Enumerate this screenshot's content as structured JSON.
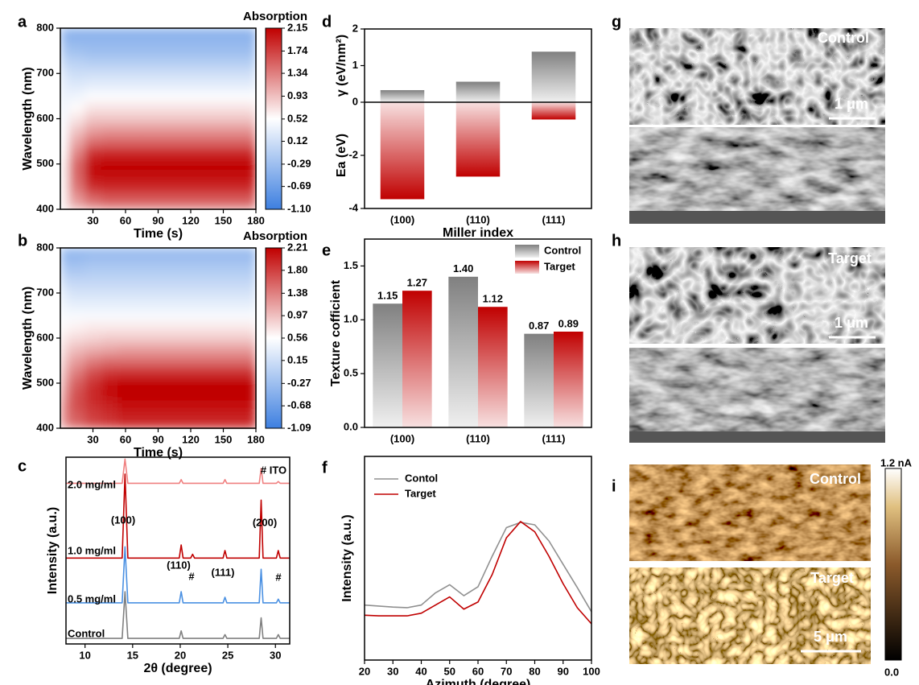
{
  "chart_data": [
    {
      "panel_label": "a",
      "type": "heatmap",
      "xlabel": "Time (s)",
      "ylabel": "Wavelength (nm)",
      "colorbar_label": "Absorption",
      "x": [
        0,
        15,
        30,
        45,
        60,
        90,
        135,
        180
      ],
      "y": [
        400,
        425,
        450,
        475,
        500,
        525,
        550,
        575,
        600,
        625,
        650,
        675,
        700,
        725,
        750,
        775,
        800
      ],
      "z": [
        [
          0.6,
          0.6,
          0.6,
          0.6,
          0.6,
          0.55,
          0.5,
          0.5,
          0.45,
          0.4,
          0.35,
          0.3,
          0.2,
          0.0,
          -0.2,
          -0.35,
          -0.5
        ],
        [
          1.0,
          1.2,
          1.4,
          1.5,
          1.5,
          1.3,
          1.1,
          0.9,
          0.7,
          0.55,
          0.4,
          0.25,
          0.1,
          -0.05,
          -0.25,
          -0.4,
          -0.5
        ],
        [
          1.2,
          1.5,
          1.85,
          2.05,
          2.1,
          1.85,
          1.45,
          1.15,
          0.9,
          0.7,
          0.5,
          0.3,
          0.12,
          -0.1,
          -0.3,
          -0.4,
          -0.5
        ],
        [
          1.3,
          1.6,
          1.9,
          2.1,
          2.15,
          1.9,
          1.5,
          1.2,
          0.9,
          0.7,
          0.5,
          0.3,
          0.12,
          -0.1,
          -0.3,
          -0.4,
          -0.5
        ],
        [
          1.3,
          1.6,
          1.9,
          2.1,
          2.15,
          1.9,
          1.5,
          1.2,
          0.9,
          0.7,
          0.5,
          0.3,
          0.12,
          -0.1,
          -0.3,
          -0.4,
          -0.5
        ],
        [
          1.3,
          1.6,
          1.9,
          2.1,
          2.15,
          1.9,
          1.5,
          1.2,
          0.9,
          0.7,
          0.5,
          0.3,
          0.12,
          -0.1,
          -0.3,
          -0.4,
          -0.5
        ],
        [
          1.3,
          1.6,
          1.9,
          2.1,
          2.15,
          1.9,
          1.5,
          1.2,
          0.9,
          0.7,
          0.5,
          0.3,
          0.12,
          -0.1,
          -0.3,
          -0.4,
          -0.5
        ],
        [
          1.3,
          1.6,
          1.9,
          2.1,
          2.15,
          1.9,
          1.5,
          1.2,
          0.9,
          0.7,
          0.5,
          0.3,
          0.12,
          -0.1,
          -0.3,
          -0.4,
          -0.5
        ]
      ],
      "xlim": [
        0,
        180
      ],
      "xticks": [
        30,
        60,
        90,
        120,
        150,
        180
      ],
      "ylim": [
        400,
        800
      ],
      "yticks": [
        400,
        500,
        600,
        700,
        800
      ],
      "zlim": [
        -1.1,
        2.15
      ],
      "zticks": [
        {
          "value": -1.1,
          "label": "-1.10"
        },
        -0.69,
        -0.29,
        0.12,
        0.52,
        0.93,
        1.34,
        1.74,
        2.15
      ],
      "colormap": [
        "#3d7fe0",
        "#ffffff",
        "#c00000"
      ]
    },
    {
      "panel_label": "b",
      "type": "heatmap",
      "xlabel": "Time (s)",
      "ylabel": "Wavelength (nm)",
      "colorbar_label": "Absorption",
      "x": [
        0,
        15,
        30,
        45,
        60,
        90,
        135,
        180
      ],
      "y": [
        400,
        425,
        450,
        475,
        500,
        525,
        550,
        575,
        600,
        625,
        650,
        675,
        700,
        725,
        750,
        775,
        800
      ],
      "z": [
        [
          1.2,
          1.3,
          1.3,
          1.2,
          1.1,
          1.0,
          0.9,
          0.8,
          0.7,
          0.6,
          0.5,
          0.4,
          0.3,
          0.1,
          -0.1,
          -0.3,
          -0.4
        ],
        [
          1.5,
          1.6,
          1.7,
          1.7,
          1.6,
          1.4,
          1.2,
          1.0,
          0.8,
          0.65,
          0.5,
          0.35,
          0.2,
          0.05,
          -0.15,
          -0.3,
          -0.4
        ],
        [
          1.7,
          1.8,
          1.9,
          1.95,
          1.9,
          1.7,
          1.4,
          1.1,
          0.85,
          0.7,
          0.5,
          0.35,
          0.2,
          0.05,
          -0.1,
          -0.25,
          -0.4
        ],
        [
          1.8,
          1.9,
          2.0,
          2.1,
          2.1,
          1.85,
          1.5,
          1.15,
          0.9,
          0.7,
          0.5,
          0.35,
          0.2,
          0.05,
          -0.1,
          -0.25,
          -0.4
        ],
        [
          1.9,
          2.0,
          2.1,
          2.2,
          2.21,
          1.9,
          1.5,
          1.2,
          0.9,
          0.7,
          0.5,
          0.35,
          0.2,
          0.05,
          -0.1,
          -0.25,
          -0.4
        ],
        [
          1.9,
          2.0,
          2.1,
          2.2,
          2.21,
          1.9,
          1.5,
          1.2,
          0.9,
          0.7,
          0.5,
          0.35,
          0.2,
          0.05,
          -0.1,
          -0.25,
          -0.4
        ],
        [
          1.9,
          2.0,
          2.1,
          2.2,
          2.21,
          1.9,
          1.5,
          1.2,
          0.9,
          0.7,
          0.5,
          0.35,
          0.2,
          0.05,
          -0.1,
          -0.25,
          -0.4
        ],
        [
          1.9,
          2.0,
          2.1,
          2.2,
          2.21,
          1.9,
          1.5,
          1.2,
          0.9,
          0.7,
          0.5,
          0.35,
          0.2,
          0.05,
          -0.1,
          -0.25,
          -0.4
        ]
      ],
      "xlim": [
        0,
        180
      ],
      "xticks": [
        30,
        60,
        90,
        120,
        150,
        180
      ],
      "ylim": [
        400,
        800
      ],
      "yticks": [
        400,
        500,
        600,
        700,
        800
      ],
      "zlim": [
        -1.09,
        2.21
      ],
      "zticks": [
        -1.09,
        -0.68,
        -0.27,
        0.15,
        0.56,
        0.97,
        1.38,
        {
          "value": 1.8,
          "label": "1.80"
        },
        2.21
      ],
      "colormap": [
        "#3d7fe0",
        "#ffffff",
        "#c00000"
      ]
    },
    {
      "panel_label": "c",
      "type": "line",
      "xlabel": "2θ (degree)",
      "ylabel": "Intensity (a.u.)",
      "x": [
        8,
        13.9,
        14.2,
        14.5,
        19.9,
        20.1,
        20.3,
        21.1,
        21.3,
        21.5,
        24.5,
        24.7,
        24.9,
        28.3,
        28.5,
        28.7,
        30.1,
        30.3,
        30.5,
        31.5
      ],
      "series": [
        {
          "name": "2.0 mg/ml",
          "color": "#f08080",
          "values": [
            86,
            86,
            99,
            86,
            86,
            88,
            86,
            86,
            86,
            86,
            86,
            88,
            86,
            86,
            94,
            86,
            86,
            87,
            86,
            86
          ]
        },
        {
          "name": "1.0 mg/ml",
          "color": "#c00000",
          "values": [
            46,
            46,
            91,
            46,
            46,
            53,
            46,
            46,
            48,
            46,
            46,
            50,
            46,
            46,
            77,
            46,
            46,
            50,
            46,
            46
          ]
        },
        {
          "name": "0.5 mg/ml",
          "color": "#4a90e2",
          "values": [
            22,
            22,
            52,
            22,
            22,
            28,
            22,
            22,
            22,
            22,
            22,
            25,
            22,
            22,
            40,
            22,
            22,
            24,
            22,
            22
          ]
        },
        {
          "name": "Control",
          "color": "#808080",
          "values": [
            3,
            3,
            28,
            3,
            3,
            7,
            3,
            3,
            3,
            3,
            3,
            5,
            3,
            3,
            14,
            3,
            3,
            5,
            3,
            3
          ]
        }
      ],
      "annotations": [
        "(100)",
        "(110)",
        "#",
        "(111)",
        "(200)",
        "#",
        "# ITO"
      ],
      "xlim": [
        8,
        31.5
      ],
      "xticks": [
        10,
        15,
        20,
        25,
        30
      ],
      "ylim": [
        0,
        100
      ]
    },
    {
      "panel_label": "d",
      "type": "bar",
      "xlabel": "Miller index",
      "ylabel": "Ea (eV)",
      "y2label": "γ (eV/nm²)",
      "categories": [
        "(100)",
        "(110)",
        "(111)"
      ],
      "series": [
        {
          "color": "#808080",
          "axis": "y2",
          "values": [
            0.33,
            0.56,
            1.38
          ]
        },
        {
          "color": "#c00000",
          "values": [
            -3.65,
            -2.8,
            -0.65
          ]
        }
      ],
      "ylim": [
        -4,
        0
      ],
      "yticks": [
        -4,
        -2
      ],
      "y2lim": [
        0,
        2
      ],
      "y2ticks": [
        0,
        1,
        2
      ]
    },
    {
      "panel_label": "e",
      "type": "bar",
      "ylabel": "Texture cofficient",
      "categories": [
        "(100)",
        "(110)",
        "(111)"
      ],
      "series": [
        {
          "name": "Control",
          "color": "#808080",
          "values": [
            1.15,
            1.4,
            0.87
          ],
          "value_labels": [
            "1.15",
            "1.40",
            "0.87"
          ]
        },
        {
          "name": "Target",
          "color": "#c00000",
          "values": [
            1.27,
            1.12,
            0.89
          ],
          "value_labels": [
            "1.27",
            "1.12",
            "0.89"
          ]
        }
      ],
      "ylim": [
        0,
        1.75
      ],
      "yticks": [
        {
          "value": 0,
          "label": "0.0"
        },
        0.5,
        {
          "value": 1,
          "label": "1.0"
        },
        1.5
      ],
      "legend": "upper right"
    },
    {
      "panel_label": "f",
      "type": "line",
      "xlabel": "Azimuth (degree)",
      "ylabel": "Intensity (a.u.)",
      "x": [
        20,
        25,
        30,
        35,
        40,
        45,
        50,
        55,
        60,
        65,
        70,
        75,
        80,
        85,
        90,
        95,
        100
      ],
      "series": [
        {
          "name": "Contol",
          "color": "#909090",
          "values": [
            27,
            26.5,
            26,
            25.7,
            27,
            33,
            37,
            31.6,
            36,
            51,
            65,
            67.6,
            66.4,
            58.5,
            47,
            35.6,
            23.7
          ]
        },
        {
          "name": "Target",
          "color": "#c00000",
          "values": [
            22,
            21.7,
            21.7,
            21.7,
            23,
            27,
            31,
            25,
            28.5,
            42,
            60,
            68,
            63,
            51,
            37.5,
            25.7,
            17.8
          ]
        }
      ],
      "xlim": [
        20,
        100
      ],
      "xticks": [
        20,
        30,
        40,
        50,
        60,
        70,
        80,
        90,
        100
      ],
      "ylim": [
        0,
        100
      ],
      "legend": "upper left"
    }
  ],
  "images": [
    {
      "panel_label": "g",
      "labels": [
        "Control",
        "1 μm"
      ]
    },
    {
      "panel_label": "h",
      "labels": [
        "Target",
        "1 μm"
      ]
    },
    {
      "panel_label": "i",
      "labels": [
        "Control",
        "Target",
        "5 μm"
      ],
      "colorbar_labels": [
        "1.2 nA",
        "0.0"
      ]
    }
  ]
}
